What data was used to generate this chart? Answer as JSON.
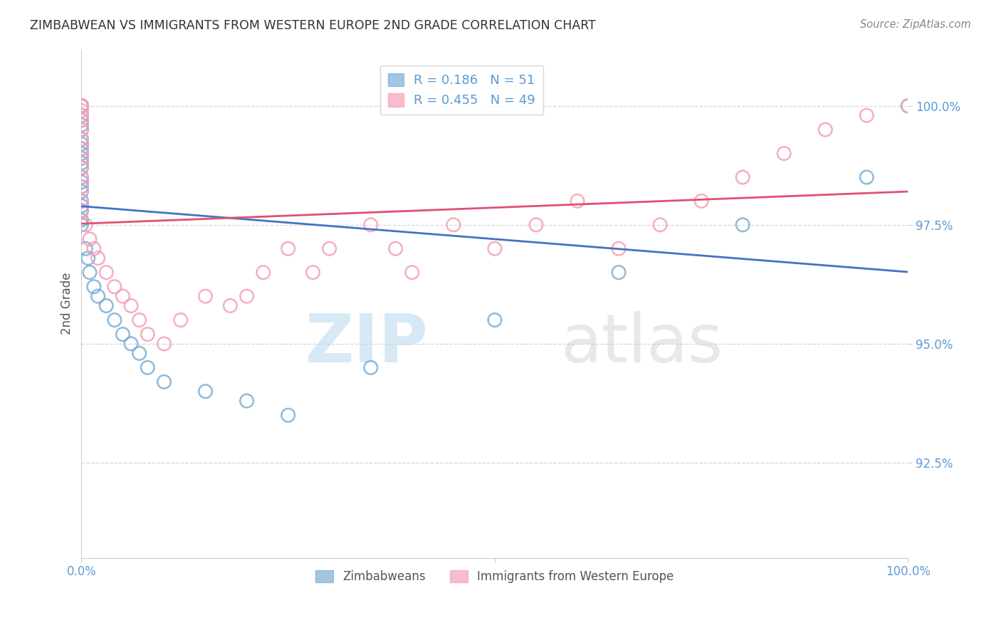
{
  "title": "ZIMBABWEAN VS IMMIGRANTS FROM WESTERN EUROPE 2ND GRADE CORRELATION CHART",
  "source": "Source: ZipAtlas.com",
  "ylabel": "2nd Grade",
  "ytick_values": [
    92.5,
    95.0,
    97.5,
    100.0
  ],
  "series1_label": "Zimbabweans",
  "series1_color": "#7bafd4",
  "series1_edge": "#5a9fc4",
  "series1_R": 0.186,
  "series1_N": 51,
  "series2_label": "Immigrants from Western Europe",
  "series2_color": "#f4a0b8",
  "series2_edge": "#e07090",
  "series2_R": 0.455,
  "series2_N": 49,
  "series1_x": [
    0.0,
    0.0,
    0.0,
    0.0,
    0.0,
    0.0,
    0.0,
    0.0,
    0.0,
    0.0,
    0.0,
    0.0,
    0.0,
    0.0,
    0.0,
    0.0,
    0.0,
    0.0,
    0.0,
    0.0,
    0.0,
    0.0,
    0.0,
    0.0,
    0.0,
    0.0,
    0.0,
    0.0,
    0.0,
    0.0,
    0.5,
    0.8,
    1.0,
    1.5,
    2.0,
    3.0,
    4.0,
    5.0,
    6.0,
    7.0,
    8.0,
    10.0,
    15.0,
    20.0,
    25.0,
    35.0,
    50.0,
    65.0,
    80.0,
    95.0,
    100.0
  ],
  "series1_y": [
    100.0,
    100.0,
    100.0,
    100.0,
    100.0,
    100.0,
    100.0,
    100.0,
    100.0,
    100.0,
    99.8,
    99.7,
    99.6,
    99.5,
    99.3,
    99.2,
    99.1,
    99.0,
    98.9,
    98.8,
    98.7,
    98.5,
    98.4,
    98.3,
    98.2,
    98.0,
    97.9,
    97.8,
    97.6,
    97.5,
    97.0,
    96.8,
    96.5,
    96.2,
    96.0,
    95.8,
    95.5,
    95.2,
    95.0,
    94.8,
    94.5,
    94.2,
    94.0,
    93.8,
    93.5,
    94.5,
    95.5,
    96.5,
    97.5,
    98.5,
    100.0
  ],
  "series2_x": [
    0.0,
    0.0,
    0.0,
    0.0,
    0.0,
    0.0,
    0.0,
    0.0,
    0.0,
    0.0,
    0.0,
    0.0,
    0.0,
    0.0,
    0.0,
    0.5,
    1.0,
    1.5,
    2.0,
    3.0,
    4.0,
    5.0,
    6.0,
    7.0,
    8.0,
    10.0,
    12.0,
    15.0,
    18.0,
    20.0,
    22.0,
    25.0,
    28.0,
    30.0,
    35.0,
    38.0,
    40.0,
    45.0,
    50.0,
    55.0,
    60.0,
    65.0,
    70.0,
    75.0,
    80.0,
    85.0,
    90.0,
    95.0,
    100.0
  ],
  "series2_y": [
    100.0,
    100.0,
    100.0,
    99.9,
    99.8,
    99.7,
    99.5,
    99.3,
    99.1,
    98.9,
    98.7,
    98.5,
    98.3,
    98.0,
    97.8,
    97.5,
    97.2,
    97.0,
    96.8,
    96.5,
    96.2,
    96.0,
    95.8,
    95.5,
    95.2,
    95.0,
    95.5,
    96.0,
    95.8,
    96.0,
    96.5,
    97.0,
    96.5,
    97.0,
    97.5,
    97.0,
    96.5,
    97.5,
    97.0,
    97.5,
    98.0,
    97.0,
    97.5,
    98.0,
    98.5,
    99.0,
    99.5,
    99.8,
    100.0
  ],
  "watermark_zip": "ZIP",
  "watermark_atlas": "atlas",
  "background_color": "#ffffff",
  "grid_color": "#cccccc",
  "title_color": "#333333",
  "tick_color": "#5b9bd5",
  "trend_color1": "#4472c4",
  "trend_color2": "#e05070"
}
